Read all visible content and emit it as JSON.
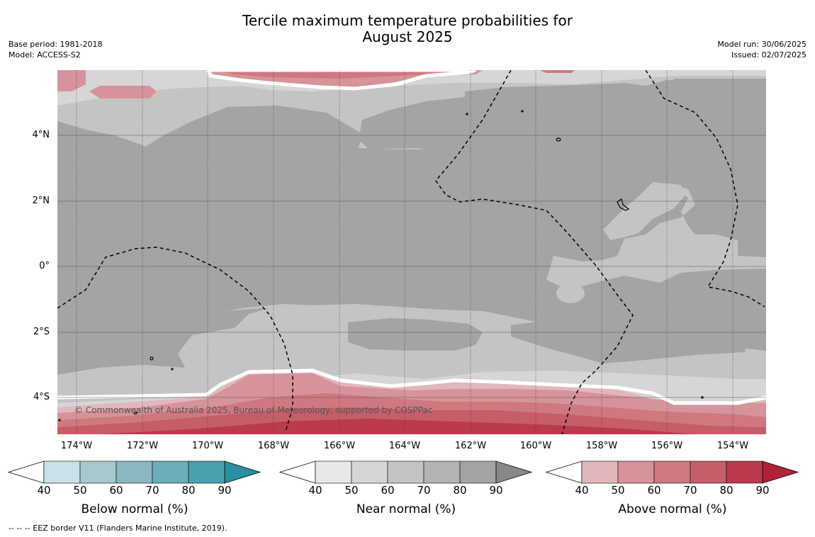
{
  "title_line1": "Tercile maximum temperature probabilities for",
  "title_line2": "August 2025",
  "base_period": "Base period: 1981-2018",
  "model": "Model: ACCESS-S2",
  "model_run": "Model run: 30/06/2025",
  "issued": "Issued: 02/07/2025",
  "copyright": "© Commonwealth of Australia 2025, Bureau of Meteorology, supported by COSPPac",
  "footnote": "--  --  -- EEZ border V11 (Flanders Marine Institute, 2019).",
  "lat_labels": [
    "4°N",
    "2°N",
    "0°",
    "2°S",
    "4°S"
  ],
  "lon_labels": [
    "174°W",
    "172°W",
    "170°W",
    "168°W",
    "166°W",
    "164°W",
    "162°W",
    "160°W",
    "158°W",
    "156°W",
    "154°W"
  ],
  "colorbars": [
    {
      "title": "Below normal (%)",
      "ticks": [
        "40",
        "50",
        "60",
        "70",
        "80",
        "90"
      ],
      "colors": [
        "#ffffff",
        "#c9e1e8",
        "#a7c8ce",
        "#8bb7c3",
        "#6cacbb",
        "#4ba0b0",
        "#2a8fa3"
      ]
    },
    {
      "title": "Near normal (%)",
      "ticks": [
        "40",
        "50",
        "60",
        "70",
        "80",
        "90"
      ],
      "colors": [
        "#ffffff",
        "#e8e8e8",
        "#d6d6d6",
        "#c4c4c4",
        "#b4b4b4",
        "#a4a4a4",
        "#888888"
      ]
    },
    {
      "title": "Above normal (%)",
      "ticks": [
        "40",
        "50",
        "60",
        "70",
        "80",
        "90"
      ],
      "colors": [
        "#ffffff",
        "#e2b7bc",
        "#d6939a",
        "#cf7880",
        "#c55e69",
        "#bb3a4d",
        "#b02038"
      ]
    }
  ]
}
